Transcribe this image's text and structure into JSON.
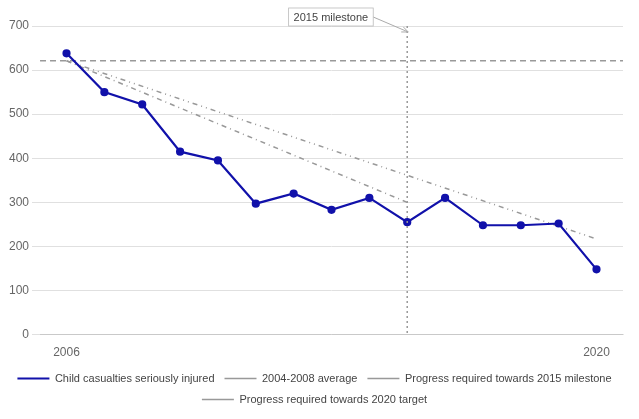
{
  "chart_data": {
    "type": "line",
    "x": [
      2006,
      2007,
      2008,
      2009,
      2010,
      2011,
      2012,
      2013,
      2014,
      2015,
      2016,
      2017,
      2018,
      2019,
      2020
    ],
    "series": [
      {
        "name": "Child casualties seriously injured",
        "values": [
          638,
          550,
          522,
          415,
          395,
          297,
          320,
          283,
          310,
          255,
          310,
          248,
          248,
          252,
          148
        ],
        "color": "#1111aa",
        "marker": "circle",
        "line_style": "solid"
      },
      {
        "name": "2004-2008 average",
        "type": "hline",
        "value": 621,
        "color": "#999999",
        "line_style": "dashed"
      },
      {
        "name": "Progress required towards 2015 milestone",
        "x": [
          2006,
          2015
        ],
        "values": [
          621,
          300
        ],
        "color": "#999999",
        "line_style": "dashdot"
      },
      {
        "name": "Progress required towards 2020 target",
        "x": [
          2006,
          2020
        ],
        "values": [
          621,
          217
        ],
        "color": "#999999",
        "line_style": "dashdotdot"
      }
    ],
    "vlines": [
      {
        "x": 2015,
        "color": "#999999",
        "line_style": "dotted"
      }
    ],
    "annotations": [
      {
        "text": "2015 milestone",
        "x": 2015
      }
    ],
    "xlim": [
      2005.3,
      2020.7
    ],
    "xticks": [
      2006,
      2020
    ],
    "ylim": [
      0,
      700
    ],
    "yticks": [
      0,
      100,
      200,
      300,
      400,
      500,
      600,
      700
    ],
    "grid": true,
    "legend": "bottom"
  }
}
